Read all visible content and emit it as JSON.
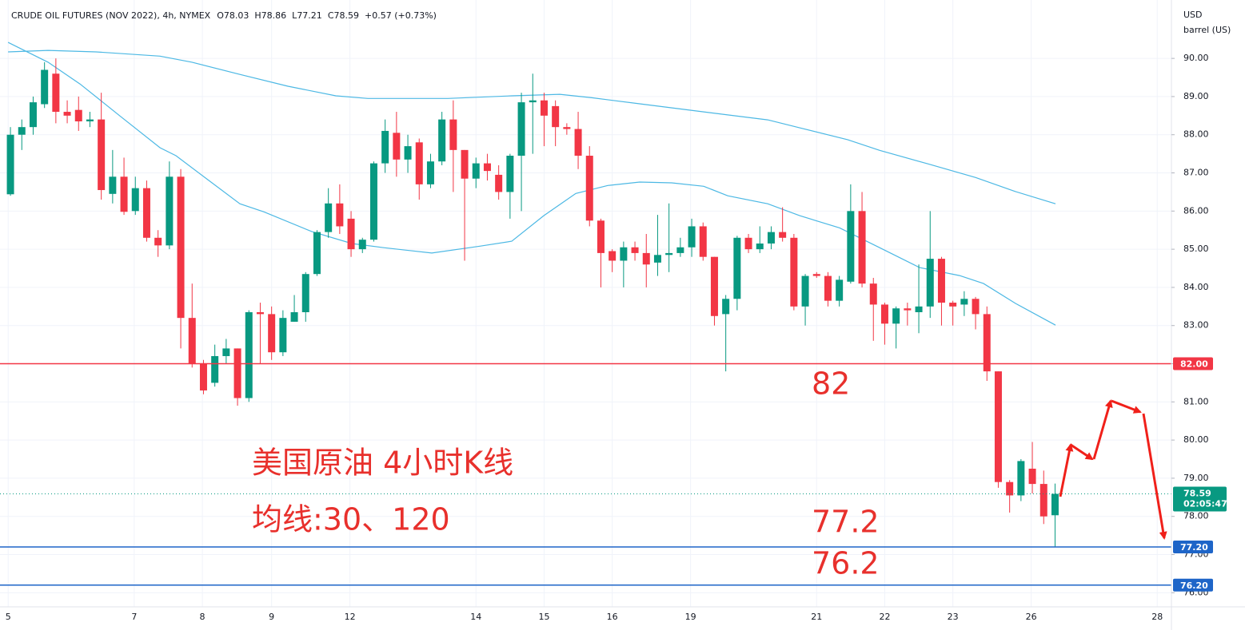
{
  "chart_data": {
    "type": "candlestick",
    "title": "CRUDE OIL FUTURES (NOV 2022), 4h, NYMEX",
    "ohlc_legend": [
      {
        "key": "O",
        "value": "78.03"
      },
      {
        "key": "H",
        "value": "78.86"
      },
      {
        "key": "L",
        "value": "77.21"
      },
      {
        "key": "C",
        "value": "78.59"
      }
    ],
    "change": "+0.57 (+0.73%)",
    "currency": "USD",
    "unit": "barrel (US)",
    "up_color": "#089981",
    "down_color": "#f23645",
    "grid": true,
    "xlim": [
      -0.92,
      102.25
    ],
    "ylim": [
      75.63,
      91.53
    ],
    "xticks": [
      {
        "value": -0.2,
        "label": "5"
      },
      {
        "value": 10.9,
        "label": "7"
      },
      {
        "value": 16.9,
        "label": "8"
      },
      {
        "value": 23.0,
        "label": "9"
      },
      {
        "value": 29.9,
        "label": "12"
      },
      {
        "value": 41.0,
        "label": "14"
      },
      {
        "value": 47.0,
        "label": "15"
      },
      {
        "value": 53.0,
        "label": "16"
      },
      {
        "value": 59.9,
        "label": "19"
      },
      {
        "value": 71.0,
        "label": "21"
      },
      {
        "value": 77.0,
        "label": "22"
      },
      {
        "value": 83.0,
        "label": "23"
      },
      {
        "value": 89.9,
        "label": "26"
      },
      {
        "value": 101.0,
        "label": "28"
      }
    ],
    "yticks": [
      {
        "value": 76,
        "label": "76.00"
      },
      {
        "value": 77,
        "label": "77.00"
      },
      {
        "value": 78,
        "label": "78.00"
      },
      {
        "value": 79,
        "label": "79.00"
      },
      {
        "value": 80,
        "label": "80.00"
      },
      {
        "value": 81,
        "label": "81.00"
      },
      {
        "value": 82,
        "label": "82.00"
      },
      {
        "value": 83,
        "label": "83.00"
      },
      {
        "value": 84,
        "label": "84.00"
      },
      {
        "value": 85,
        "label": "85.00"
      },
      {
        "value": 86,
        "label": "86.00"
      },
      {
        "value": 87,
        "label": "87.00"
      },
      {
        "value": 88,
        "label": "88.00"
      },
      {
        "value": 89,
        "label": "89.00"
      },
      {
        "value": 90,
        "label": "90.00"
      }
    ],
    "candles": {
      "open": [
        86.44,
        88.0,
        88.2,
        88.8,
        89.6,
        88.6,
        88.65,
        88.35,
        88.4,
        86.45,
        86.9,
        86.0,
        86.6,
        85.3,
        85.1,
        86.9,
        83.2,
        82.0,
        81.5,
        82.2,
        82.4,
        81.1,
        83.35,
        83.3,
        82.3,
        83.1,
        83.35,
        84.35,
        85.45,
        86.2,
        85.8,
        85.0,
        85.25,
        87.25,
        88.05,
        87.35,
        87.8,
        86.7,
        87.3,
        88.4,
        87.6,
        86.85,
        87.25,
        86.95,
        86.5,
        87.45,
        88.85,
        88.9,
        88.75,
        88.2,
        88.15,
        87.45,
        85.75,
        84.95,
        84.7,
        85.05,
        84.9,
        84.65,
        84.85,
        84.9,
        85.05,
        85.6,
        84.8,
        83.3,
        83.7,
        85.3,
        85.0,
        85.15,
        85.45,
        85.3,
        83.5,
        84.35,
        84.3,
        83.65,
        84.15,
        86.0,
        84.1,
        83.55,
        83.05,
        83.45,
        83.35,
        83.5,
        84.75,
        83.6,
        83.55,
        83.7,
        83.3,
        81.8,
        78.9,
        78.55,
        79.25,
        78.85,
        78.03
      ],
      "high": [
        88.2,
        88.4,
        89.0,
        89.9,
        90.0,
        88.9,
        89.0,
        88.6,
        89.1,
        87.6,
        87.4,
        86.9,
        86.8,
        85.5,
        87.3,
        87.1,
        84.1,
        82.1,
        82.5,
        82.65,
        82.4,
        83.4,
        83.6,
        83.5,
        83.4,
        83.8,
        84.4,
        85.5,
        86.6,
        86.7,
        86.0,
        85.3,
        87.3,
        88.4,
        88.6,
        88.0,
        87.9,
        87.5,
        88.6,
        88.9,
        87.6,
        87.4,
        87.5,
        87.2,
        87.5,
        89.1,
        89.6,
        89.1,
        88.9,
        88.3,
        88.6,
        87.7,
        85.8,
        85.0,
        85.2,
        85.2,
        85.4,
        85.9,
        86.2,
        85.3,
        85.8,
        85.7,
        84.8,
        83.8,
        85.35,
        85.4,
        85.6,
        85.6,
        86.1,
        85.4,
        84.35,
        84.4,
        84.4,
        84.3,
        86.7,
        86.5,
        84.25,
        83.6,
        83.5,
        83.6,
        84.6,
        86.0,
        84.8,
        83.65,
        83.9,
        83.75,
        83.5,
        81.8,
        78.95,
        79.5,
        79.95,
        79.2,
        78.86
      ],
      "low": [
        86.4,
        87.6,
        88.0,
        88.7,
        88.3,
        88.3,
        88.1,
        88.2,
        86.3,
        86.2,
        85.9,
        85.9,
        85.2,
        84.8,
        85.0,
        82.4,
        81.9,
        81.2,
        81.4,
        82.0,
        80.9,
        81.0,
        82.0,
        82.1,
        82.2,
        83.1,
        83.1,
        84.3,
        85.3,
        85.4,
        84.8,
        84.9,
        85.2,
        87.0,
        86.9,
        87.0,
        86.3,
        86.6,
        87.2,
        86.5,
        84.7,
        86.6,
        86.8,
        86.3,
        85.8,
        86.0,
        87.5,
        87.7,
        87.7,
        88.0,
        87.1,
        85.6,
        84.0,
        84.4,
        84.0,
        84.7,
        84.0,
        84.3,
        84.4,
        84.8,
        84.8,
        84.7,
        83.0,
        81.8,
        83.4,
        84.9,
        84.9,
        85.0,
        85.2,
        83.4,
        83.0,
        84.25,
        83.5,
        83.5,
        84.1,
        84.0,
        82.6,
        82.5,
        82.4,
        83.0,
        82.8,
        83.2,
        83.0,
        83.0,
        83.25,
        82.9,
        81.55,
        78.75,
        78.1,
        78.4,
        78.6,
        77.8,
        77.21
      ],
      "close": [
        88.0,
        88.2,
        88.85,
        89.7,
        88.6,
        88.5,
        88.35,
        88.4,
        86.55,
        86.9,
        85.98,
        86.6,
        85.3,
        85.1,
        86.9,
        83.2,
        82.0,
        81.3,
        82.2,
        82.4,
        81.1,
        83.35,
        83.3,
        82.3,
        83.2,
        83.35,
        84.35,
        85.45,
        86.2,
        85.6,
        85.0,
        85.25,
        87.25,
        88.1,
        87.35,
        87.7,
        86.7,
        87.3,
        88.4,
        87.6,
        86.85,
        87.25,
        87.05,
        86.5,
        87.45,
        88.85,
        88.9,
        88.5,
        88.2,
        88.15,
        87.45,
        85.75,
        84.9,
        84.7,
        85.05,
        84.9,
        84.6,
        84.85,
        84.9,
        85.05,
        85.6,
        84.8,
        83.25,
        83.7,
        85.3,
        85.0,
        85.15,
        85.45,
        85.3,
        83.5,
        84.3,
        84.3,
        83.65,
        84.2,
        86.0,
        84.1,
        83.55,
        83.05,
        83.45,
        83.4,
        83.5,
        84.75,
        83.6,
        83.5,
        83.7,
        83.3,
        81.8,
        78.9,
        78.55,
        79.45,
        78.85,
        78.0,
        78.59
      ]
    },
    "moving_averages": [
      {
        "color": "#4cb8e4",
        "x": [
          -0.21,
          3.31,
          6.13,
          9.65,
          13.17,
          14.58,
          17.39,
          20.21,
          22.32,
          26.55,
          30.07,
          32.89,
          37.11,
          41.34,
          44.15,
          46.97,
          49.79,
          52.61,
          55.42,
          58.24,
          61.06,
          63.17,
          66.69,
          69.51,
          73.03,
          76.55,
          80.07,
          83.59,
          85.7,
          88.52,
          92.04
        ],
        "values": [
          90.42,
          89.9,
          89.33,
          88.49,
          87.66,
          87.45,
          86.82,
          86.19,
          85.98,
          85.46,
          85.15,
          85.04,
          84.9,
          85.08,
          85.21,
          85.88,
          86.46,
          86.67,
          86.76,
          86.74,
          86.65,
          86.4,
          86.19,
          85.88,
          85.56,
          85.04,
          84.52,
          84.31,
          84.1,
          83.58,
          83.01
        ]
      },
      {
        "color": "#4cb8e4",
        "x": [
          -0.21,
          3.31,
          7.54,
          13.17,
          15.99,
          20.21,
          24.44,
          28.66,
          31.48,
          38.52,
          44.15,
          48.38,
          51.2,
          55.42,
          61.06,
          66.69,
          69.51,
          73.73,
          76.55,
          80.77,
          85.0,
          88.52,
          92.04
        ],
        "values": [
          90.17,
          90.21,
          90.17,
          90.06,
          89.9,
          89.58,
          89.27,
          89.02,
          88.95,
          88.95,
          89.02,
          89.06,
          88.97,
          88.81,
          88.6,
          88.39,
          88.18,
          87.87,
          87.59,
          87.24,
          86.88,
          86.51,
          86.19
        ]
      }
    ],
    "price_lines": [
      {
        "value": 82,
        "label": "82.00",
        "color": "#f23645"
      },
      {
        "value": 77.2,
        "label": "77.20",
        "color": "#1e65c8"
      },
      {
        "value": 76.2,
        "label": "76.20",
        "color": "#1e65c8"
      }
    ],
    "last_price": {
      "value": 78.59,
      "label": "78.59",
      "countdown": "02:05:47",
      "color": "#089981"
    },
    "annotations": [
      "82",
      "77.2",
      "76.2",
      "美国原油 4小时K线",
      "均线:30、120"
    ]
  }
}
